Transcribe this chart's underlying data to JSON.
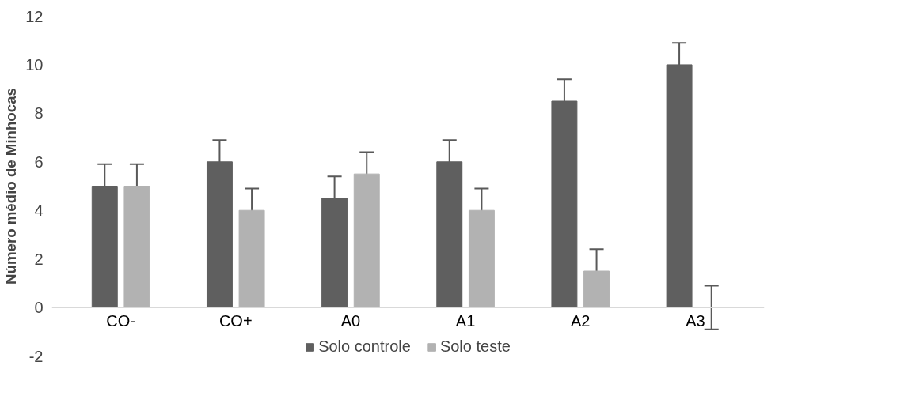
{
  "chart_data": {
    "type": "bar",
    "ylabel": "Número médio de Minhocas",
    "categories": [
      "CO-",
      "CO+",
      "A0",
      "A1",
      "A2",
      "A3"
    ],
    "series": [
      {
        "name": "Solo controle",
        "color": "#5f5f5f",
        "values": [
          5,
          6,
          4.5,
          6,
          8.5,
          10
        ],
        "errors": [
          0.9,
          0.9,
          0.9,
          0.9,
          0.9,
          0.9
        ]
      },
      {
        "name": "Solo teste",
        "color": "#b2b2b2",
        "values": [
          5,
          4,
          5.5,
          4,
          1.5,
          0
        ],
        "errors": [
          0.9,
          0.9,
          0.9,
          0.9,
          0.9,
          0.9
        ]
      }
    ],
    "ylim": [
      -2,
      12
    ],
    "yticks": [
      -2,
      0,
      2,
      4,
      6,
      8,
      10,
      12
    ],
    "grid": false,
    "legend": "bottom"
  }
}
